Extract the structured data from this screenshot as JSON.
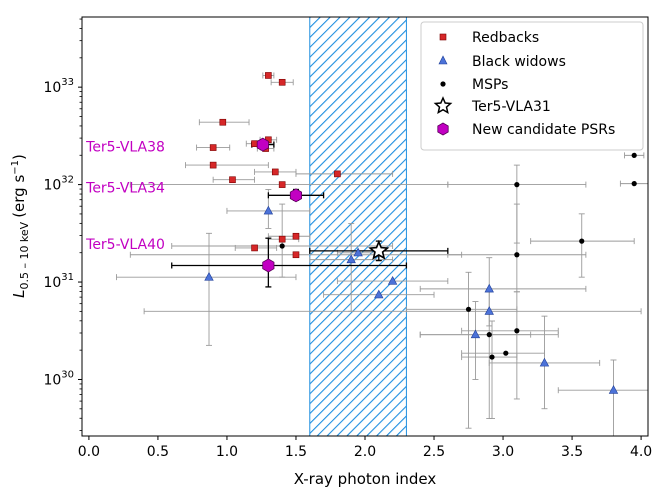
{
  "chart_data": {
    "type": "scatter",
    "xlabel": "X-ray photon index",
    "ylabel_main": "L",
    "ylabel_sub": "0.5 – 10 keV",
    "ylabel_unit_pre": "(erg s",
    "ylabel_unit_sup": "−1",
    "ylabel_unit_post": ")",
    "xlim": [
      -0.05,
      4.05
    ],
    "ylim_log10": [
      29.42,
      33.72
    ],
    "xticks": [
      0.0,
      0.5,
      1.0,
      1.5,
      2.0,
      2.5,
      3.0,
      3.5,
      4.0
    ],
    "xtick_labels": [
      "0.0",
      "0.5",
      "1.0",
      "1.5",
      "2.0",
      "2.5",
      "3.0",
      "3.5",
      "4.0"
    ],
    "yticks_log10": [
      30,
      31,
      32,
      33
    ],
    "ytick_labels": [
      {
        "base": "10",
        "exp": "30"
      },
      {
        "base": "10",
        "exp": "31"
      },
      {
        "base": "10",
        "exp": "32"
      },
      {
        "base": "10",
        "exp": "33"
      }
    ],
    "band": {
      "x_start": 1.6,
      "x_end": 2.3,
      "color": "#1f8fe0"
    },
    "colors": {
      "redbacks": "#d62728",
      "black_widows": "#4c72d8",
      "msps": "#000000",
      "candidates": "#c200c2",
      "annotation": "#c200c2",
      "errorbar": "#9a9a9a"
    },
    "legend": {
      "position": "top-right",
      "entries": [
        {
          "key": "redbacks",
          "label": "Redbacks"
        },
        {
          "key": "black_widows",
          "label": "Black widows"
        },
        {
          "key": "msps",
          "label": "MSPs"
        },
        {
          "key": "ter5vla31",
          "label": "Ter5-VLA31"
        },
        {
          "key": "candidates",
          "label": "New candidate PSRs"
        }
      ]
    },
    "annotations": [
      {
        "text": "Ter5-VLA38",
        "x": -0.02,
        "y_log10": 32.39
      },
      {
        "text": "Ter5-VLA34",
        "x": -0.02,
        "y_log10": 31.97
      },
      {
        "text": "Ter5-VLA40",
        "x": -0.02,
        "y_log10": 31.39
      }
    ],
    "series": [
      {
        "name": "Redbacks",
        "key": "redbacks",
        "points": [
          {
            "x": 1.3,
            "y": 33.12,
            "xl": 1.26,
            "xh": 1.34
          },
          {
            "x": 1.4,
            "y": 33.05,
            "xl": 1.32,
            "xh": 1.48
          },
          {
            "x": 0.97,
            "y": 32.64,
            "xl": 0.8,
            "xh": 1.16
          },
          {
            "x": 1.3,
            "y": 32.46,
            "xl": 1.24,
            "xh": 1.36
          },
          {
            "x": 1.2,
            "y": 32.42,
            "xl": 1.14,
            "xh": 1.34
          },
          {
            "x": 0.9,
            "y": 32.38,
            "xl": 0.78,
            "xh": 1.02
          },
          {
            "x": 1.28,
            "y": 32.37,
            "xl": 1.22,
            "xh": 1.34
          },
          {
            "x": 0.9,
            "y": 32.2,
            "xl": 0.7,
            "xh": 1.3
          },
          {
            "x": 1.35,
            "y": 32.13,
            "xl": 1.2,
            "xh": 1.5
          },
          {
            "x": 1.8,
            "y": 32.11,
            "xl": 1.5,
            "xh": 2.2
          },
          {
            "x": 1.04,
            "y": 32.05,
            "xl": 0.9,
            "xh": 1.2
          },
          {
            "x": 1.4,
            "y": 32.0,
            "xl": 0.3,
            "xh": 2.6
          },
          {
            "x": 1.5,
            "y": 31.47,
            "xl": 1.3,
            "xh": 1.6
          },
          {
            "x": 1.4,
            "y": 31.44,
            "xl": 1.3,
            "xh": 1.52
          },
          {
            "x": 1.2,
            "y": 31.35,
            "xl": 1.06,
            "xh": 1.36
          },
          {
            "x": 1.5,
            "y": 31.28,
            "xl": 0.3,
            "xh": 2.7
          }
        ]
      },
      {
        "name": "Black widows",
        "key": "black_widows",
        "points": [
          {
            "x": 1.3,
            "y": 31.73,
            "xl": 1.0,
            "xh": 1.6,
            "yl": 31.55,
            "yh": 31.95
          },
          {
            "x": 0.87,
            "y": 31.05,
            "xl": 0.2,
            "xh": 1.5,
            "yl": 30.35,
            "yh": 31.5
          },
          {
            "x": 1.9,
            "y": 31.23,
            "xl": 1.6,
            "xh": 2.2,
            "yl": 30.7,
            "yh": 31.6
          },
          {
            "x": 1.95,
            "y": 31.3,
            "xl": 1.8,
            "xh": 2.1
          },
          {
            "x": 2.1,
            "y": 30.87,
            "xl": 1.7,
            "xh": 2.5
          },
          {
            "x": 2.2,
            "y": 31.01,
            "xl": 1.8,
            "xh": 2.6
          },
          {
            "x": 2.9,
            "y": 30.93,
            "xl": 2.4,
            "xh": 3.6,
            "yl": 30.55,
            "yh": 31.25
          },
          {
            "x": 2.9,
            "y": 30.7,
            "xl": 0.4,
            "xh": 4.0
          },
          {
            "x": 2.8,
            "y": 30.46,
            "xl": 2.4,
            "xh": 3.2,
            "yl": 30.0,
            "yh": 30.8
          },
          {
            "x": 3.3,
            "y": 30.17,
            "xl": 2.9,
            "xh": 3.7,
            "yl": 29.7,
            "yh": 30.65
          },
          {
            "x": 3.8,
            "y": 29.89,
            "xl": 3.4,
            "xh": 4.05,
            "yl": 29.42,
            "yh": 30.2
          }
        ]
      },
      {
        "name": "MSPs",
        "key": "msps",
        "points": [
          {
            "x": 3.95,
            "y": 32.3,
            "xl": 3.88,
            "xh": 4.02
          },
          {
            "x": 3.95,
            "y": 32.01,
            "xl": 3.85,
            "xh": 4.05
          },
          {
            "x": 3.1,
            "y": 32.0,
            "xl": 2.6,
            "xh": 3.6,
            "yl": 31.4,
            "yh": 32.2
          },
          {
            "x": 3.57,
            "y": 31.42,
            "xl": 3.2,
            "xh": 3.95,
            "yl": 31.05,
            "yh": 31.7
          },
          {
            "x": 3.1,
            "y": 31.28,
            "xl": 2.6,
            "xh": 3.6,
            "yl": 30.9,
            "yh": 31.8
          },
          {
            "x": 1.4,
            "y": 31.37,
            "xl": 0.6,
            "xh": 2.2,
            "yl": 31.05,
            "yh": 31.8
          },
          {
            "x": 2.75,
            "y": 30.72,
            "xl": 2.3,
            "xh": 3.1,
            "yl": 29.5,
            "yh": 31.1
          },
          {
            "x": 2.9,
            "y": 30.46,
            "xl": 2.4,
            "xh": 3.4,
            "yl": 29.6,
            "yh": 30.9
          },
          {
            "x": 3.1,
            "y": 30.5,
            "xl": 2.7,
            "xh": 3.4,
            "yl": 29.8,
            "yh": 30.9
          },
          {
            "x": 2.92,
            "y": 30.23,
            "xl": 2.7,
            "xh": 3.1,
            "yl": 29.6,
            "yh": 30.6
          },
          {
            "x": 3.02,
            "y": 30.27,
            "xl": 2.7,
            "xh": 3.3
          }
        ]
      },
      {
        "name": "Ter5-VLA31",
        "key": "ter5vla31",
        "points": [
          {
            "x": 2.1,
            "y": 31.32,
            "xl": 1.6,
            "xh": 2.6,
            "yl": 31.22,
            "yh": 31.42
          }
        ]
      },
      {
        "name": "New candidate PSRs",
        "key": "candidates",
        "points": [
          {
            "x": 1.26,
            "y": 32.41,
            "xl": 1.18,
            "xh": 1.34,
            "yl": 32.36,
            "yh": 32.46
          },
          {
            "x": 1.5,
            "y": 31.89,
            "xl": 1.3,
            "xh": 1.7,
            "yl": 31.84,
            "yh": 31.95
          },
          {
            "x": 1.3,
            "y": 31.17,
            "xl": 0.6,
            "xh": 2.3,
            "yl": 30.95,
            "yh": 31.45
          }
        ]
      }
    ]
  }
}
